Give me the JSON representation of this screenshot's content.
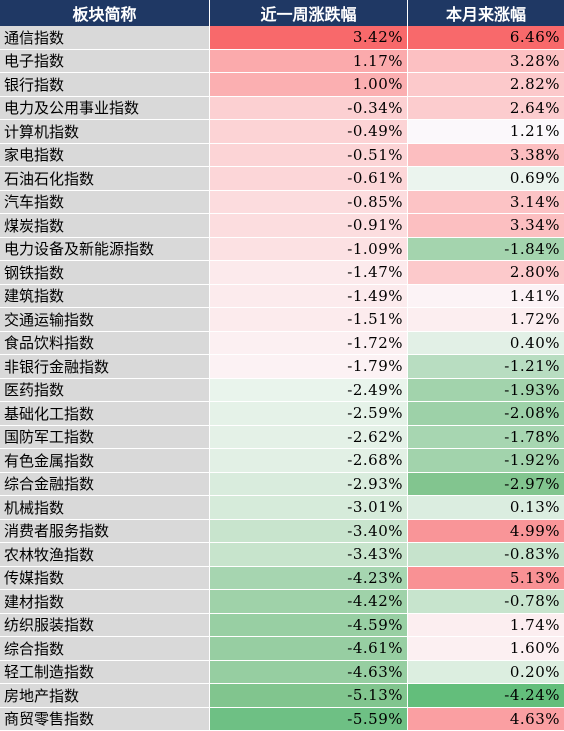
{
  "table": {
    "headers": [
      "板块简称",
      "近一周涨跌幅",
      "本月来涨幅"
    ],
    "rows": [
      {
        "name": "通信指数",
        "week": "3.42%",
        "month": "6.46%",
        "week_color": "#f8696b",
        "month_color": "#f8696b"
      },
      {
        "name": "电子指数",
        "week": "1.17%",
        "month": "3.28%",
        "week_color": "#fbaaac",
        "month_color": "#fcc0c2"
      },
      {
        "name": "银行指数",
        "week": "1.00%",
        "month": "2.82%",
        "week_color": "#fbafb1",
        "month_color": "#fcc9cb"
      },
      {
        "name": "电力及公用事业指数",
        "week": "-0.34%",
        "month": "2.64%",
        "week_color": "#fcd0d2",
        "month_color": "#fcccce"
      },
      {
        "name": "计算机指数",
        "week": "-0.49%",
        "month": "1.21%",
        "week_color": "#fcd3d5",
        "month_color": "#fbf8fb"
      },
      {
        "name": "家电指数",
        "week": "-0.51%",
        "month": "3.38%",
        "week_color": "#fcd4d6",
        "month_color": "#fcbec0"
      },
      {
        "name": "石油石化指数",
        "week": "-0.61%",
        "month": "0.69%",
        "week_color": "#fcd6d8",
        "month_color": "#ebf4ee"
      },
      {
        "name": "汽车指数",
        "week": "-0.85%",
        "month": "3.14%",
        "week_color": "#fcdcde",
        "month_color": "#fcc3c5"
      },
      {
        "name": "煤炭指数",
        "week": "-0.91%",
        "month": "3.34%",
        "week_color": "#fcdddf",
        "month_color": "#fcbfc1"
      },
      {
        "name": "电力设备及新能源指数",
        "week": "-1.09%",
        "month": "-1.84%",
        "week_color": "#fce1e3",
        "month_color": "#a4d4ae"
      },
      {
        "name": "钢铁指数",
        "week": "-1.47%",
        "month": "2.80%",
        "week_color": "#fceaec",
        "month_color": "#fcc9cb"
      },
      {
        "name": "建筑指数",
        "week": "-1.49%",
        "month": "1.41%",
        "week_color": "#fcebed",
        "month_color": "#fcf3f6"
      },
      {
        "name": "交通运输指数",
        "week": "-1.51%",
        "month": "1.72%",
        "week_color": "#fcebed",
        "month_color": "#fceef0"
      },
      {
        "name": "食品饮料指数",
        "week": "-1.72%",
        "month": "0.40%",
        "week_color": "#fcf0f2",
        "month_color": "#e2f0e6"
      },
      {
        "name": "非银行金融指数",
        "week": "-1.79%",
        "month": "-1.21%",
        "week_color": "#fcf2f4",
        "month_color": "#b8ddc1"
      },
      {
        "name": "医药指数",
        "week": "-2.49%",
        "month": "-1.93%",
        "week_color": "#e9f4ec",
        "month_color": "#a2d3ac"
      },
      {
        "name": "基础化工指数",
        "week": "-2.59%",
        "month": "-2.08%",
        "week_color": "#e5f2e8",
        "month_color": "#9dd1a8"
      },
      {
        "name": "国防军工指数",
        "week": "-2.62%",
        "month": "-1.78%",
        "week_color": "#e4f1e7",
        "month_color": "#a7d6b1"
      },
      {
        "name": "有色金属指数",
        "week": "-2.68%",
        "month": "-1.92%",
        "week_color": "#e2f0e5",
        "month_color": "#a2d3ac"
      },
      {
        "name": "综合金融指数",
        "week": "-2.93%",
        "month": "-2.97%",
        "week_color": "#d9ecdd",
        "month_color": "#82c58f"
      },
      {
        "name": "机械指数",
        "week": "-3.01%",
        "month": "0.13%",
        "week_color": "#d6ebda",
        "month_color": "#dbede0"
      },
      {
        "name": "消费者服务指数",
        "week": "-3.40%",
        "month": "4.99%",
        "week_color": "#c8e4cd",
        "month_color": "#f99598"
      },
      {
        "name": "农林牧渔指数",
        "week": "-3.43%",
        "month": "-0.83%",
        "week_color": "#c7e4cc",
        "month_color": "#c6e3cc"
      },
      {
        "name": "传媒指数",
        "week": "-4.23%",
        "month": "5.13%",
        "week_color": "#a6d5b0",
        "month_color": "#f99194"
      },
      {
        "name": "建材指数",
        "week": "-4.42%",
        "month": "-0.78%",
        "week_color": "#9fd2a9",
        "month_color": "#c7e4cd"
      },
      {
        "name": "纺织服装指数",
        "week": "-4.59%",
        "month": "1.74%",
        "week_color": "#98cfa3",
        "month_color": "#fceef0"
      },
      {
        "name": "综合指数",
        "week": "-4.61%",
        "month": "1.60%",
        "week_color": "#97cea2",
        "month_color": "#fcf0f2"
      },
      {
        "name": "轻工制造指数",
        "week": "-4.63%",
        "month": "0.20%",
        "week_color": "#96cea1",
        "month_color": "#dceee0"
      },
      {
        "name": "房地产指数",
        "week": "-5.13%",
        "month": "-4.24%",
        "week_color": "#81c58e",
        "month_color": "#63be7b"
      },
      {
        "name": "商贸零售指数",
        "week": "-5.59%",
        "month": "4.63%",
        "week_color": "#6ec084",
        "month_color": "#fa9fa2"
      }
    ]
  }
}
